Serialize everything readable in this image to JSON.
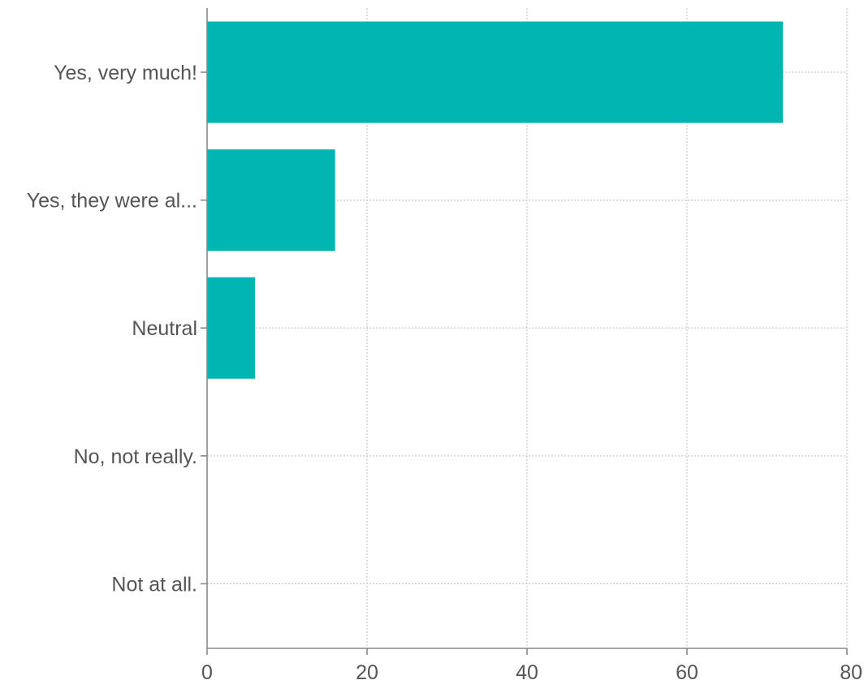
{
  "chart_data": {
    "type": "bar",
    "orientation": "horizontal",
    "categories": [
      "Yes, very much!",
      "Yes, they were al...",
      "Neutral",
      "No, not really.",
      "Not at all."
    ],
    "values": [
      72,
      16,
      6,
      0,
      0
    ],
    "xlim": [
      0,
      80
    ],
    "x_ticks": [
      "0",
      "20",
      "40",
      "60",
      "80"
    ],
    "title": "",
    "xlabel": "",
    "ylabel": "",
    "grid": true,
    "legend": "none",
    "bar_color": "#00b5b2"
  }
}
